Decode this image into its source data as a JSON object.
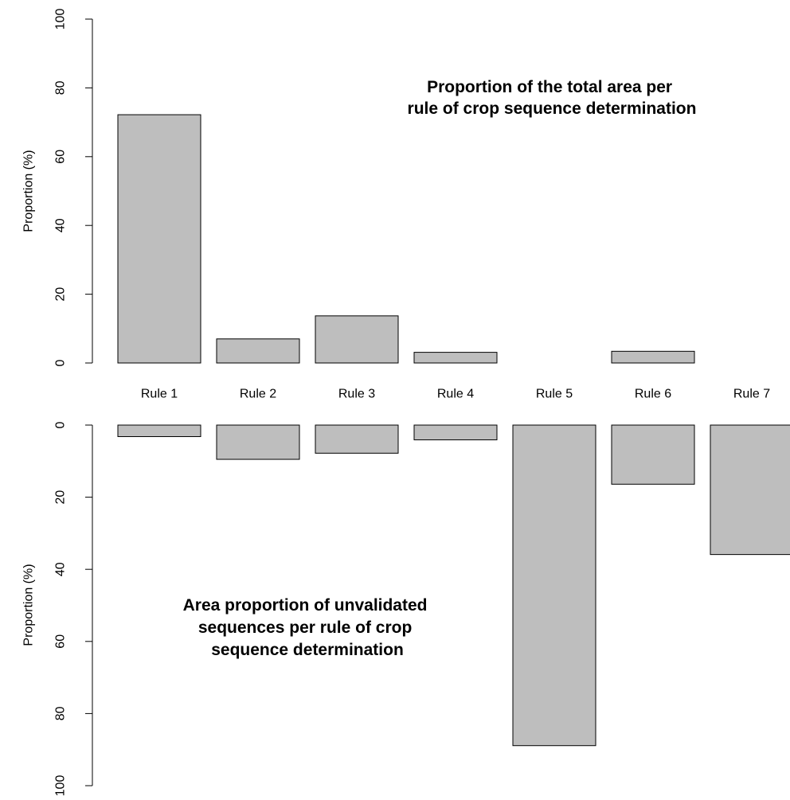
{
  "chart_data": [
    {
      "type": "bar",
      "categories": [
        "Rule 1",
        "Rule 2",
        "Rule 3",
        "Rule 4",
        "Rule 5",
        "Rule 6",
        "Rule 7"
      ],
      "values": [
        72.2,
        7.0,
        13.7,
        3.1,
        0.0,
        3.4,
        0.0
      ],
      "title_lines": [
        "Proportion of the total area per",
        "rule of crop sequence determination"
      ],
      "xlabel": "",
      "ylabel": "Proportion (%)",
      "ylim": [
        0,
        100
      ],
      "yticks": [
        "0",
        "20",
        "40",
        "60",
        "80",
        "100"
      ],
      "grid": false,
      "orientation": "upward",
      "bar_color": "#bebebe"
    },
    {
      "type": "bar",
      "categories": [
        "Rule 1",
        "Rule 2",
        "Rule 3",
        "Rule 4",
        "Rule 5",
        "Rule 6",
        "Rule 7"
      ],
      "values": [
        3.2,
        9.5,
        7.8,
        4.1,
        88.9,
        16.4,
        35.9
      ],
      "title_lines": [
        "Area proportion of unvalidated",
        "sequences per rule of crop",
        "sequence determination"
      ],
      "xlabel": "",
      "ylabel": "Proportion (%)",
      "ylim": [
        0,
        100
      ],
      "yticks": [
        "0",
        "20",
        "40",
        "60",
        "80",
        "100"
      ],
      "grid": false,
      "orientation": "downward (axis reversed)",
      "bar_color": "#bebebe"
    }
  ]
}
